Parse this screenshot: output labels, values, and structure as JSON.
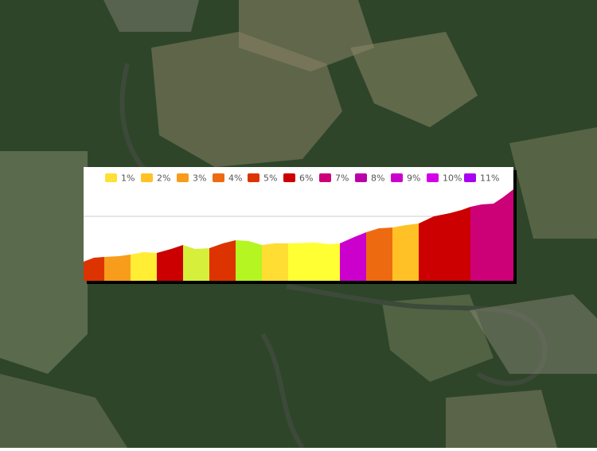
{
  "legend": [
    {
      "label": "1%",
      "color": "#ffe033"
    },
    {
      "label": "2%",
      "color": "#ffc125"
    },
    {
      "label": "3%",
      "color": "#f89c1c"
    },
    {
      "label": "4%",
      "color": "#ee6a10"
    },
    {
      "label": "5%",
      "color": "#dd3300"
    },
    {
      "label": "6%",
      "color": "#cc0000"
    },
    {
      "label": "7%",
      "color": "#cc0077"
    },
    {
      "label": "8%",
      "color": "#bb00aa"
    },
    {
      "label": "9%",
      "color": "#cc00cc"
    },
    {
      "label": "10%",
      "color": "#d400e8"
    },
    {
      "label": "11%",
      "color": "#a800f0"
    }
  ]
}
